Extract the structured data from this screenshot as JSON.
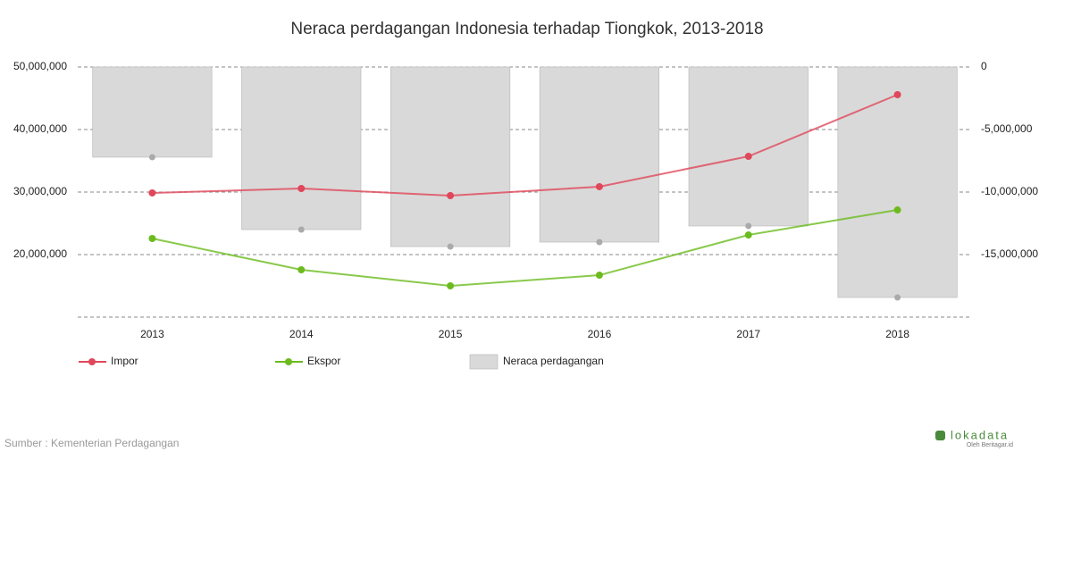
{
  "chart_data": {
    "type": "combo",
    "title": "Neraca perdagangan Indonesia terhadap Tiongkok, 2013-2018",
    "categories": [
      "2013",
      "2014",
      "2015",
      "2016",
      "2017",
      "2018"
    ],
    "series": [
      {
        "name": "Impor",
        "type": "line",
        "color": "#e0475a",
        "values": [
          29860000,
          30570000,
          29430000,
          30860000,
          35710000,
          45570000
        ]
      },
      {
        "name": "Ekspor",
        "type": "line",
        "color": "#6cbb1e",
        "values": [
          22570000,
          17570000,
          15000000,
          16710000,
          23140000,
          27140000
        ]
      },
      {
        "name": "Neraca perdagangan",
        "type": "bar",
        "axis": "y2",
        "color": "#d9d9d9",
        "values": [
          -7210000,
          -13000000,
          -14360000,
          -14000000,
          -12710000,
          -18430000
        ]
      }
    ],
    "ylim": [
      10000000,
      50000000
    ],
    "yticks": [
      {
        "value": 20000000,
        "label": "20,000,000"
      },
      {
        "value": 30000000,
        "label": "30,000,000"
      },
      {
        "value": 40000000,
        "label": "40,000,000"
      },
      {
        "value": 50000000,
        "label": "50,000,000"
      }
    ],
    "y2lim": [
      -20000000,
      0
    ],
    "y2ticks": [
      0,
      {
        "value": -5000000,
        "label": "-5,000,000"
      },
      {
        "value": -10000000,
        "label": "-10,000,000"
      },
      {
        "value": -15000000,
        "label": "-15,000,000"
      }
    ],
    "grid": true,
    "legend": "bottom"
  },
  "footer": {
    "source": "Sumber : Kementerian Perdagangan",
    "logo": "lokadata",
    "logo_sub": "Oleh Beritagar.id"
  }
}
